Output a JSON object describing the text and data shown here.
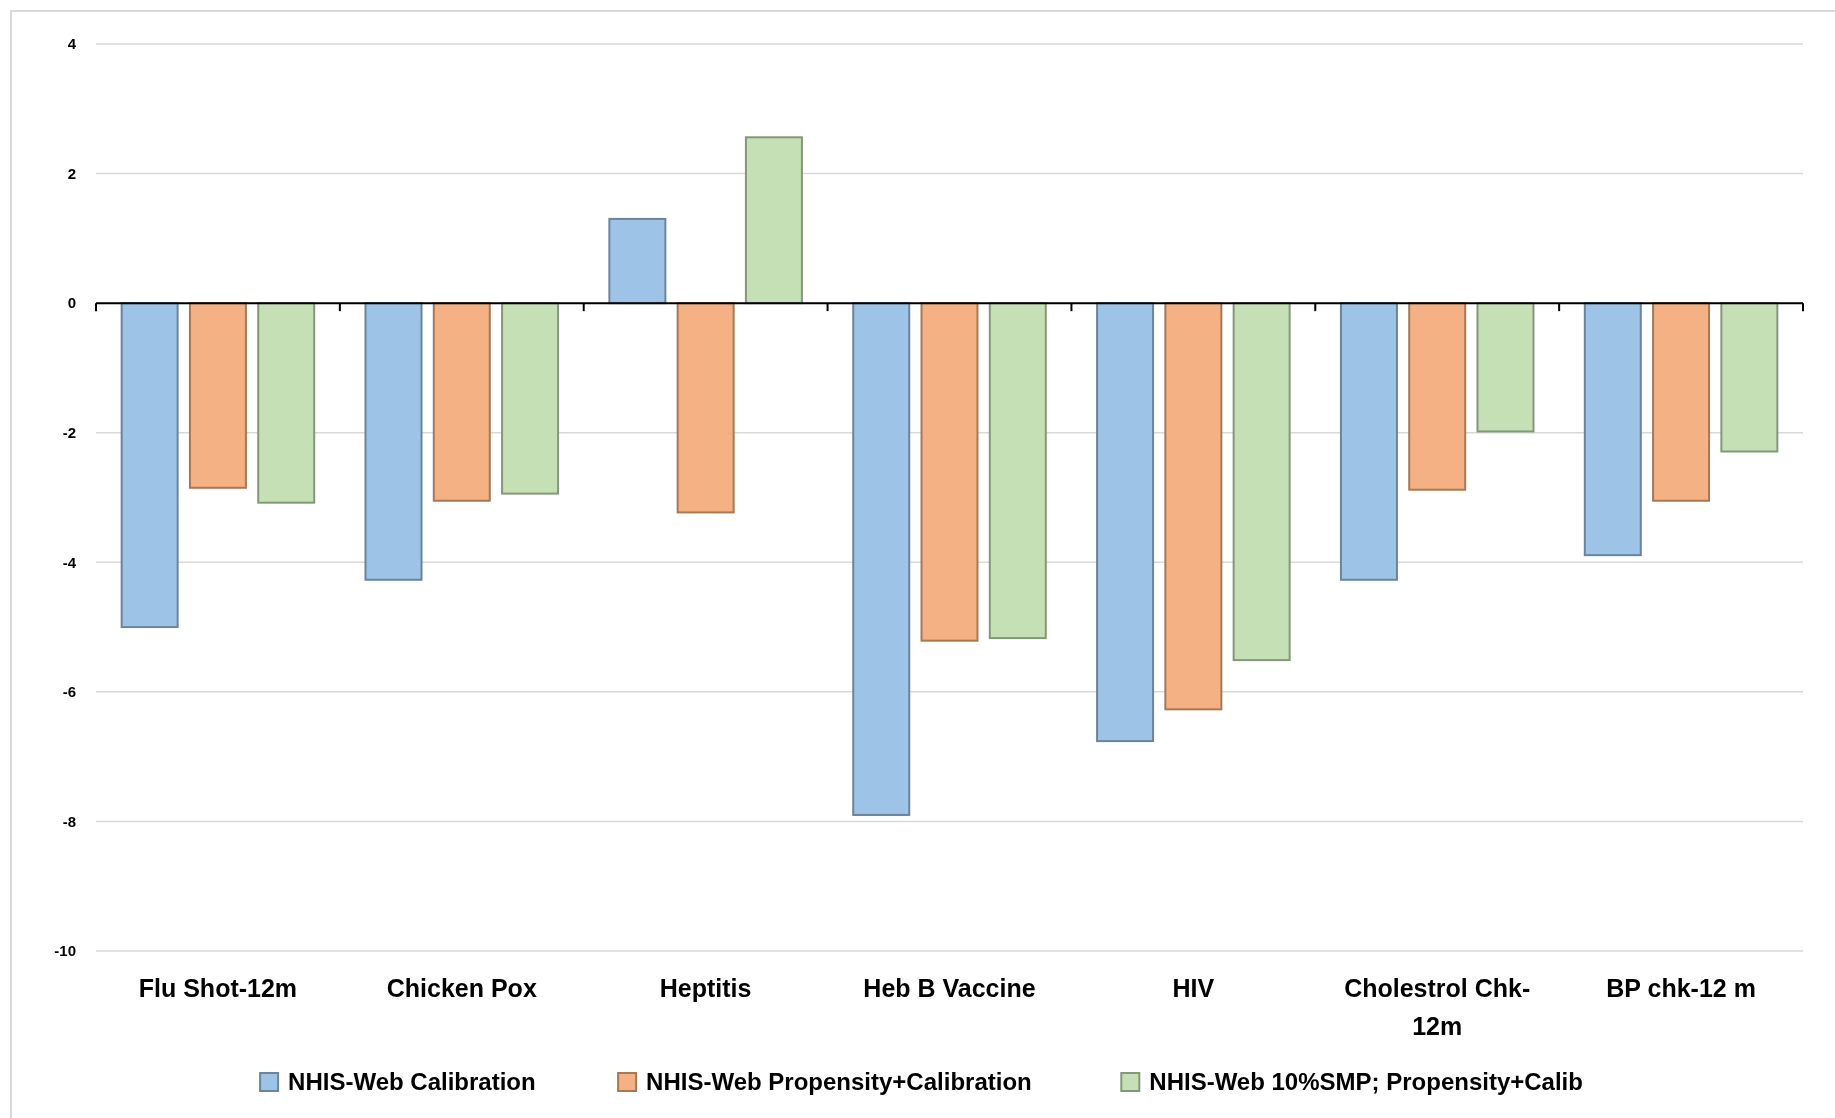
{
  "chart_data": {
    "type": "bar",
    "categories": [
      "Flu Shot-12m",
      "Chicken Pox",
      "Heptitis",
      "Heb B Vaccine",
      "HIV",
      "Cholestrol Chk-12m",
      "BP chk-12 m"
    ],
    "series": [
      {
        "name": "NHIS-Web Calibration",
        "color": "#9dc3e6",
        "values": [
          -5.0,
          -4.27,
          1.3,
          -7.9,
          -6.76,
          -4.27,
          -3.89
        ]
      },
      {
        "name": "NHIS-Web Propensity+Calibration",
        "color": "#f4b183",
        "values": [
          -2.85,
          -3.05,
          -3.23,
          -5.21,
          -6.27,
          -2.88,
          -3.05
        ]
      },
      {
        "name": "NHIS-Web 10%SMP; Propensity+Calib",
        "color": "#c5e0b4",
        "values": [
          -3.08,
          -2.94,
          2.56,
          -5.17,
          -5.51,
          -1.98,
          -2.29
        ]
      }
    ],
    "ylim": [
      -10,
      4
    ],
    "yticks": [
      -10,
      -8,
      -6,
      -4,
      -2,
      0,
      2,
      4
    ],
    "grid": "y",
    "legend": "bottom"
  }
}
